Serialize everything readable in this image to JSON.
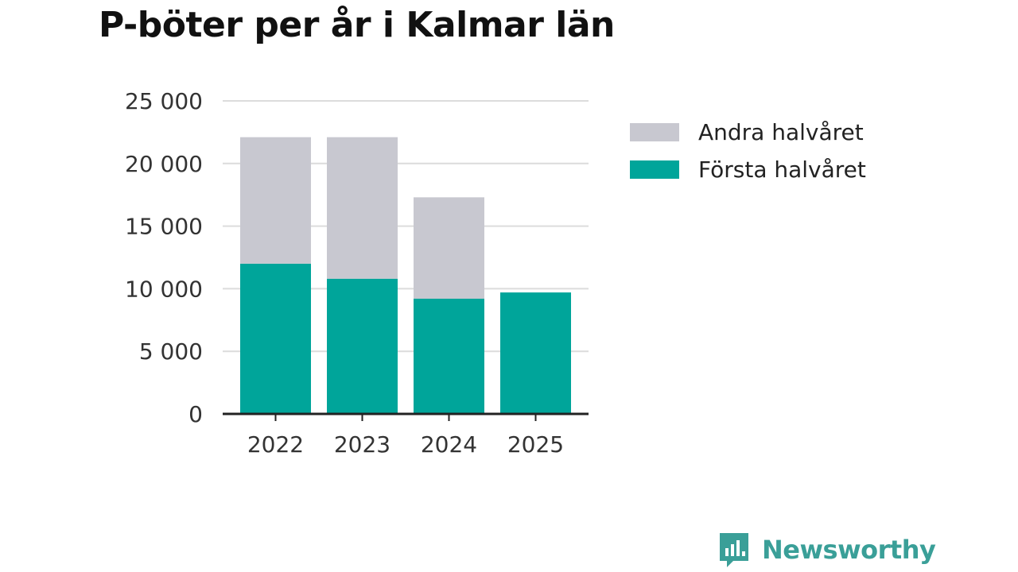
{
  "chart_data": {
    "type": "bar",
    "stacked": true,
    "title": "P-böter per år i Kalmar län",
    "categories": [
      "2022",
      "2023",
      "2024",
      "2025"
    ],
    "series": [
      {
        "name": "Första halvåret",
        "color": "#00a59a",
        "values": [
          12000,
          10800,
          9200,
          9700
        ]
      },
      {
        "name": "Andra halvåret",
        "color": "#c8c8d0",
        "values": [
          10100,
          11300,
          8100,
          0
        ]
      }
    ],
    "legend_order": [
      "Andra halvåret",
      "Första halvåret"
    ],
    "y_ticks": [
      0,
      5000,
      10000,
      15000,
      20000,
      25000
    ],
    "y_tick_labels": [
      "0",
      "5 000",
      "10 000",
      "15 000",
      "20 000",
      "25 000"
    ],
    "ylim": [
      0,
      25000
    ],
    "xlabel": "",
    "ylabel": "",
    "grid": true,
    "legend_position": "right"
  },
  "brand": {
    "name": "Newsworthy",
    "icon": "newsworthy-logo-icon",
    "color": "#3a9f98"
  }
}
